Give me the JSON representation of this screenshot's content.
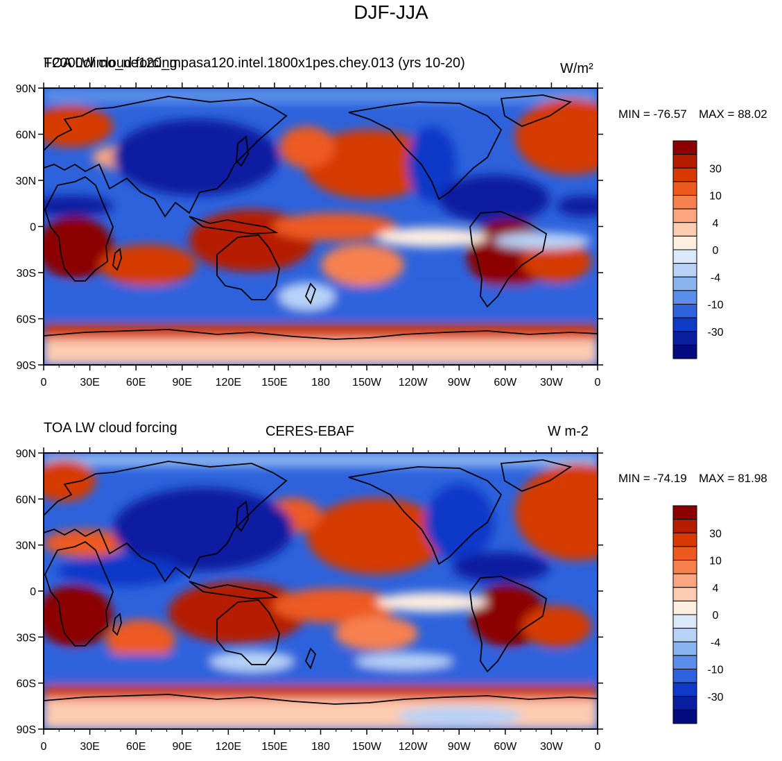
{
  "figure_title": "DJF-JJA",
  "panels": [
    {
      "left_title_a": "TOA LW cloud forcing",
      "left_title_b": "F2000climo_ne120_mpasa120.intel.1800x1pes.chey.013 (yrs 10-20)",
      "center_title": "",
      "units": "W/m²",
      "min_label": "MIN = -76.57",
      "max_label": "MAX =  88.02"
    },
    {
      "left_title_a": "TOA LW cloud forcing",
      "left_title_b": "",
      "center_title": "CERES-EBAF",
      "units": "W m-2",
      "min_label": "MIN = -74.19",
      "max_label": "MAX =  81.98"
    }
  ],
  "lat_ticks": [
    "90N",
    "60N",
    "30N",
    "0",
    "30S",
    "60S",
    "90S"
  ],
  "lon_ticks": [
    "0",
    "30E",
    "60E",
    "90E",
    "120E",
    "150E",
    "180",
    "150W",
    "120W",
    "90W",
    "60W",
    "30W",
    "0"
  ],
  "colorbar_labels": [
    "30",
    "10",
    "4",
    "0",
    "-4",
    "-10",
    "-30"
  ],
  "colorbar_colors": [
    "#8c0000",
    "#b51c00",
    "#d63a00",
    "#ed5a20",
    "#f7804f",
    "#fba680",
    "#fdcbb0",
    "#fdeee0",
    "#dce9fb",
    "#b8d2f7",
    "#8ab4f0",
    "#5a8ee8",
    "#2d62dc",
    "#1139c8",
    "#0a1fa0",
    "#040a80"
  ]
}
